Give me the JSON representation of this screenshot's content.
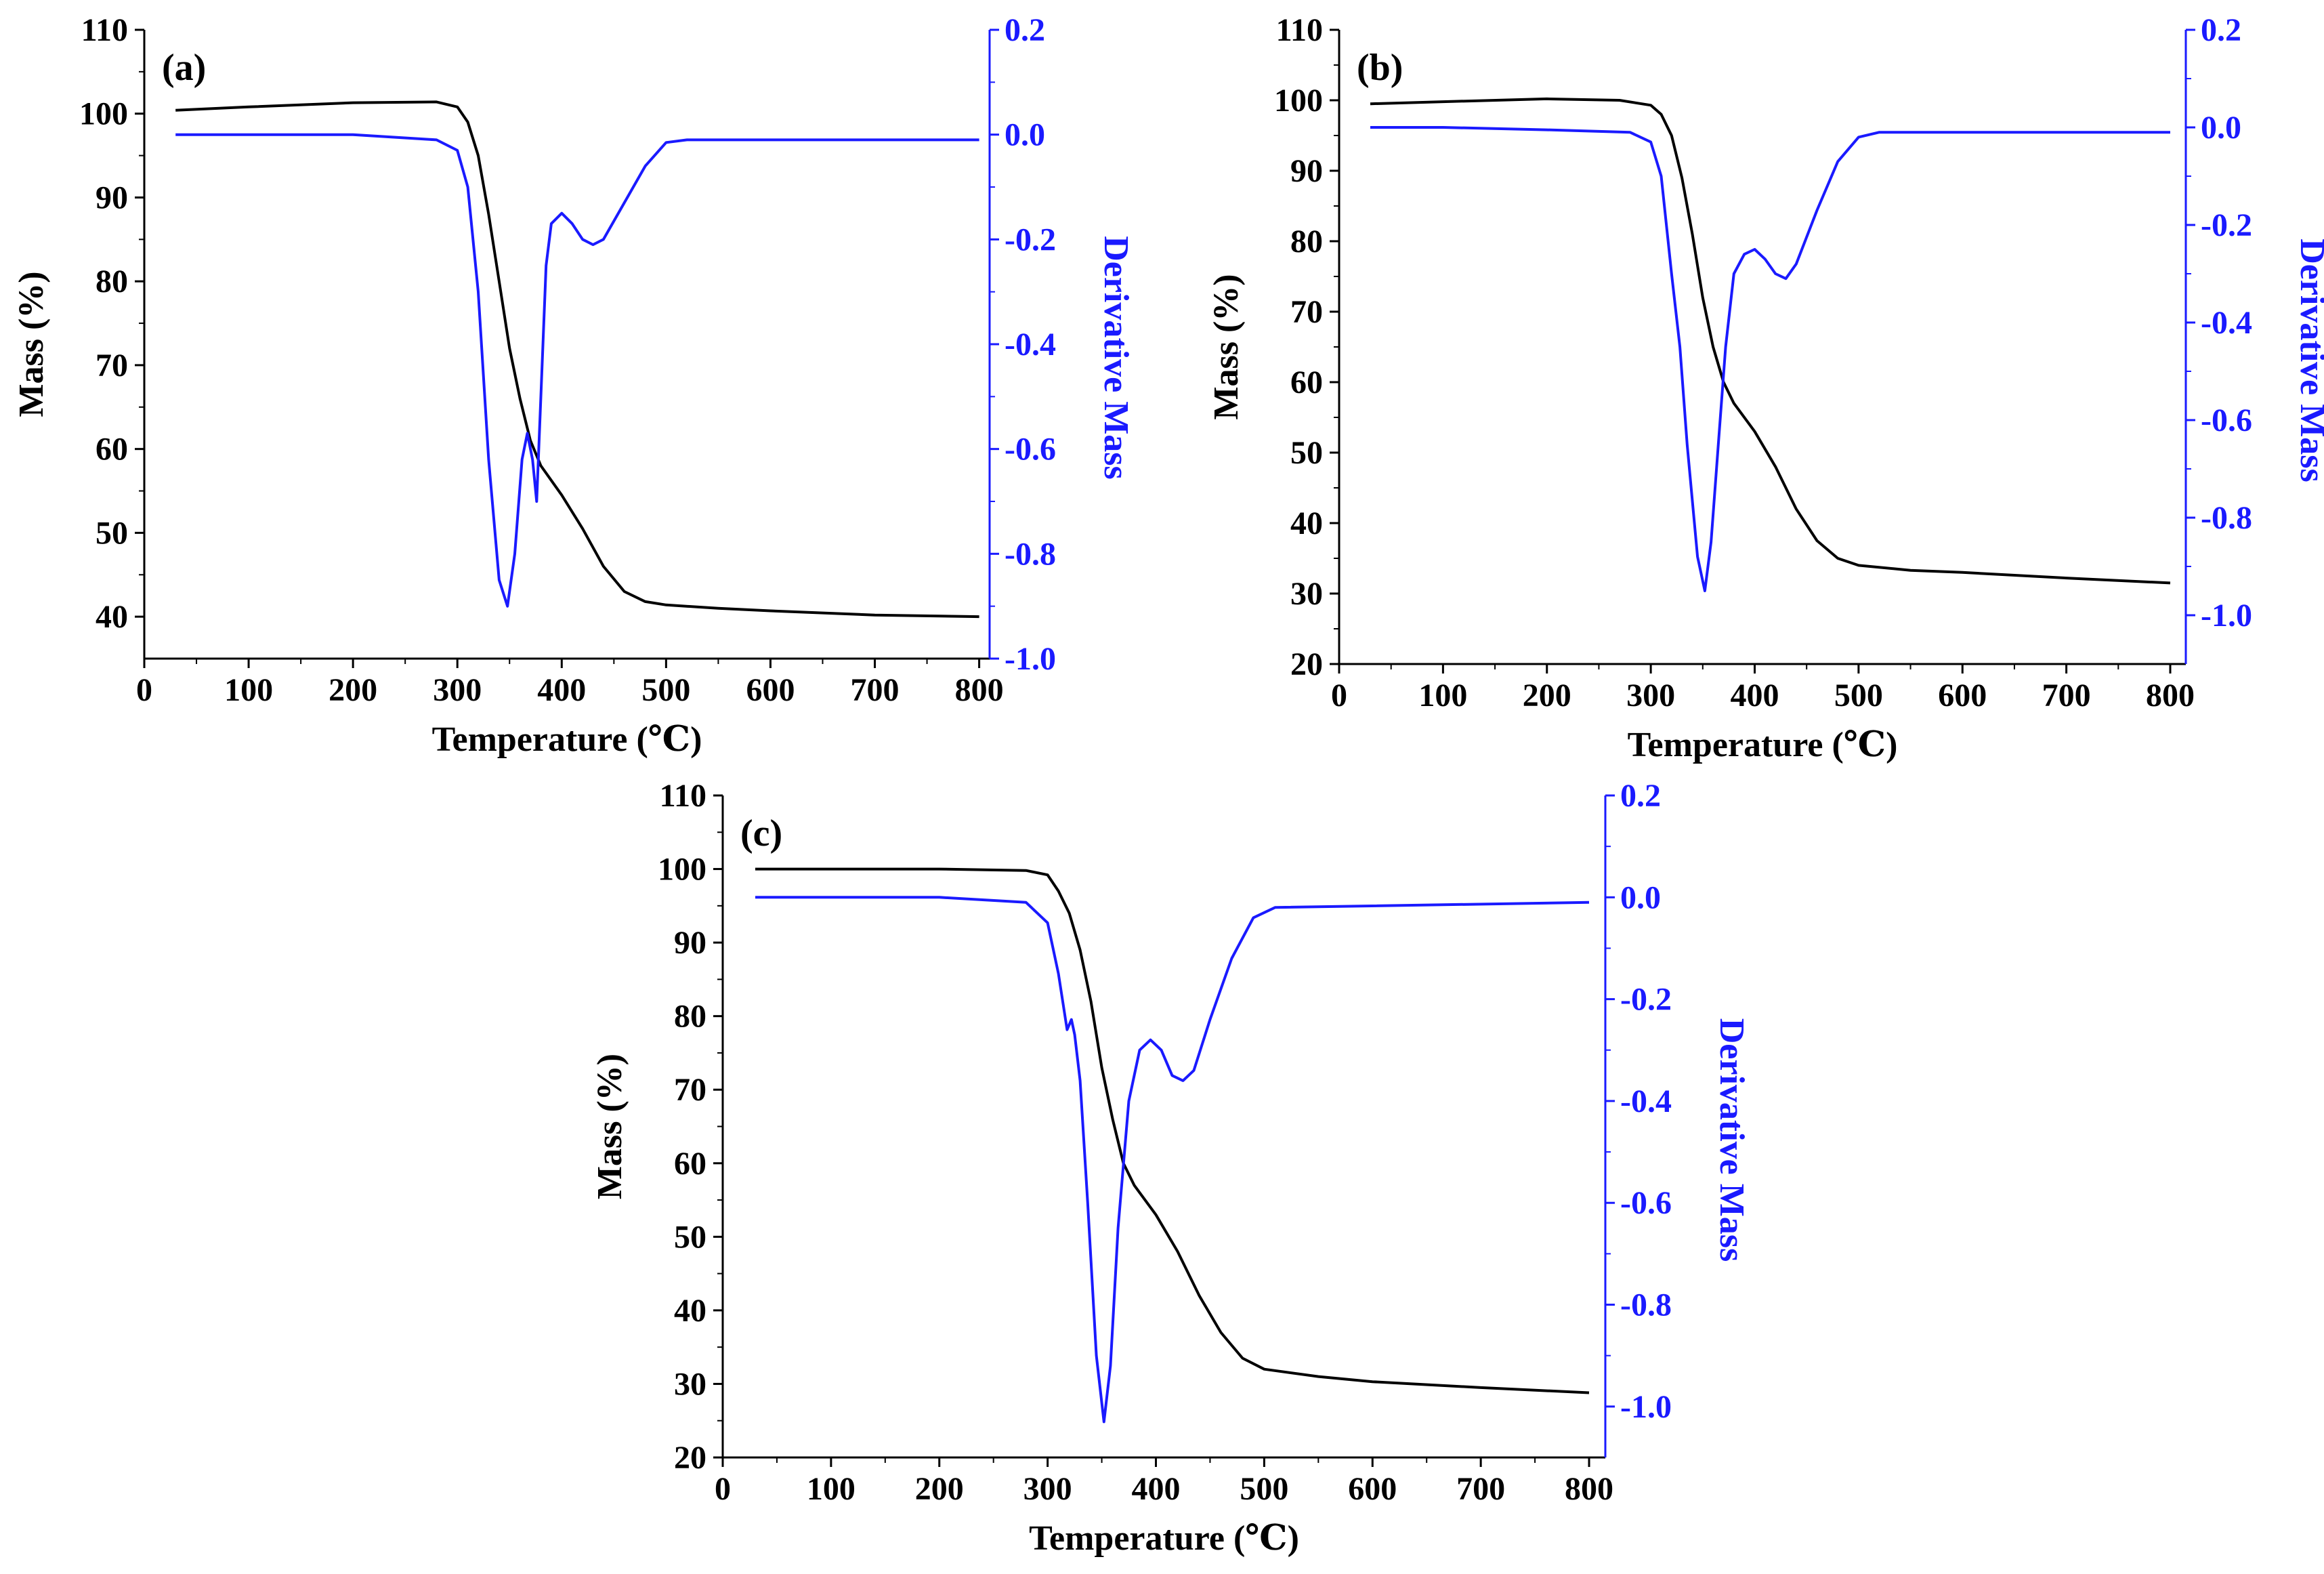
{
  "figure": {
    "panels": [
      "(a)",
      "(b)",
      "(c)"
    ]
  },
  "colors": {
    "mass": "#000000",
    "derivative": "#1a1aff",
    "axis": "#000000"
  },
  "chart_data": [
    {
      "id": "a",
      "type": "line",
      "panel_label": "(a)",
      "xlabel": "Temperature (℃)",
      "ylabel_left": "Mass (%)",
      "ylabel_right": "Derivative Mass",
      "xlim": [
        0,
        810
      ],
      "ylim_left": [
        35,
        110
      ],
      "ylim_right": [
        -1.0,
        0.2
      ],
      "x_ticks": [
        0,
        100,
        200,
        300,
        400,
        500,
        600,
        700,
        800
      ],
      "y_left_ticks": [
        40,
        50,
        60,
        70,
        80,
        90,
        100,
        110
      ],
      "y_right_ticks": [
        0.2,
        0.0,
        -0.2,
        -0.4,
        -0.6,
        -0.8,
        -1.0
      ],
      "y_right_tick_labels": [
        "0.2",
        "0.0",
        "-0.2",
        "-0.4",
        "-0.6",
        "-0.8",
        "-1.0"
      ],
      "series": [
        {
          "name": "Mass (%)",
          "axis": "left",
          "points": [
            [
              30,
              100.4
            ],
            [
              100,
              100.8
            ],
            [
              200,
              101.3
            ],
            [
              280,
              101.4
            ],
            [
              300,
              100.8
            ],
            [
              310,
              99
            ],
            [
              320,
              95
            ],
            [
              330,
              88
            ],
            [
              340,
              80
            ],
            [
              350,
              72
            ],
            [
              360,
              66
            ],
            [
              370,
              61
            ],
            [
              380,
              58
            ],
            [
              400,
              54.5
            ],
            [
              420,
              50.5
            ],
            [
              440,
              46
            ],
            [
              460,
              43
            ],
            [
              480,
              41.8
            ],
            [
              500,
              41.4
            ],
            [
              550,
              41
            ],
            [
              600,
              40.7
            ],
            [
              700,
              40.2
            ],
            [
              800,
              40
            ]
          ]
        },
        {
          "name": "Derivative Mass",
          "axis": "right",
          "points": [
            [
              30,
              0.0
            ],
            [
              100,
              0.0
            ],
            [
              200,
              0.0
            ],
            [
              280,
              -0.01
            ],
            [
              300,
              -0.03
            ],
            [
              310,
              -0.1
            ],
            [
              320,
              -0.3
            ],
            [
              330,
              -0.62
            ],
            [
              340,
              -0.85
            ],
            [
              348,
              -0.9
            ],
            [
              355,
              -0.8
            ],
            [
              362,
              -0.62
            ],
            [
              367,
              -0.57
            ],
            [
              372,
              -0.62
            ],
            [
              376,
              -0.7
            ],
            [
              380,
              -0.5
            ],
            [
              385,
              -0.25
            ],
            [
              390,
              -0.17
            ],
            [
              400,
              -0.15
            ],
            [
              410,
              -0.17
            ],
            [
              420,
              -0.2
            ],
            [
              430,
              -0.21
            ],
            [
              440,
              -0.2
            ],
            [
              460,
              -0.13
            ],
            [
              480,
              -0.06
            ],
            [
              500,
              -0.015
            ],
            [
              520,
              -0.01
            ],
            [
              800,
              -0.01
            ]
          ]
        }
      ]
    },
    {
      "id": "b",
      "type": "line",
      "panel_label": "(b)",
      "xlabel": "Temperature (℃)",
      "ylabel_left": "Mass (%)",
      "ylabel_right": "Derivative Mass",
      "xlim": [
        0,
        815
      ],
      "ylim_left": [
        20,
        110
      ],
      "ylim_right": [
        -1.1,
        0.2
      ],
      "x_ticks": [
        0,
        100,
        200,
        300,
        400,
        500,
        600,
        700,
        800
      ],
      "y_left_ticks": [
        20,
        30,
        40,
        50,
        60,
        70,
        80,
        90,
        100,
        110
      ],
      "y_right_ticks": [
        0.2,
        0.0,
        -0.2,
        -0.4,
        -0.6,
        -0.8,
        -1.0
      ],
      "y_right_tick_labels": [
        "0.2",
        "0.0",
        "-0.2",
        "-0.4",
        "-0.6",
        "-0.8",
        "-1.0"
      ],
      "series": [
        {
          "name": "Mass (%)",
          "axis": "left",
          "points": [
            [
              30,
              99.5
            ],
            [
              100,
              99.8
            ],
            [
              200,
              100.2
            ],
            [
              270,
              100
            ],
            [
              300,
              99.3
            ],
            [
              310,
              98
            ],
            [
              320,
              95
            ],
            [
              330,
              89
            ],
            [
              340,
              81
            ],
            [
              350,
              72
            ],
            [
              360,
              65
            ],
            [
              370,
              60
            ],
            [
              380,
              57
            ],
            [
              400,
              53
            ],
            [
              420,
              48
            ],
            [
              440,
              42
            ],
            [
              460,
              37.5
            ],
            [
              480,
              35
            ],
            [
              500,
              34
            ],
            [
              550,
              33.3
            ],
            [
              600,
              33
            ],
            [
              700,
              32.2
            ],
            [
              800,
              31.5
            ]
          ]
        },
        {
          "name": "Derivative Mass",
          "axis": "right",
          "points": [
            [
              30,
              0.0
            ],
            [
              100,
              0.0
            ],
            [
              200,
              -0.005
            ],
            [
              280,
              -0.01
            ],
            [
              300,
              -0.03
            ],
            [
              310,
              -0.1
            ],
            [
              320,
              -0.3
            ],
            [
              328,
              -0.45
            ],
            [
              335,
              -0.65
            ],
            [
              345,
              -0.88
            ],
            [
              352,
              -0.95
            ],
            [
              358,
              -0.85
            ],
            [
              365,
              -0.65
            ],
            [
              372,
              -0.45
            ],
            [
              380,
              -0.3
            ],
            [
              390,
              -0.26
            ],
            [
              400,
              -0.25
            ],
            [
              410,
              -0.27
            ],
            [
              420,
              -0.3
            ],
            [
              430,
              -0.31
            ],
            [
              440,
              -0.28
            ],
            [
              460,
              -0.17
            ],
            [
              480,
              -0.07
            ],
            [
              500,
              -0.02
            ],
            [
              520,
              -0.01
            ],
            [
              800,
              -0.01
            ]
          ]
        }
      ]
    },
    {
      "id": "c",
      "type": "line",
      "panel_label": "(c)",
      "xlabel": "Temperature (℃)",
      "ylabel_left": "Mass (%)",
      "ylabel_right": "Derivative Mass",
      "xlim": [
        0,
        815
      ],
      "ylim_left": [
        20,
        110
      ],
      "ylim_right": [
        -1.1,
        0.2
      ],
      "x_ticks": [
        0,
        100,
        200,
        300,
        400,
        500,
        600,
        700,
        800
      ],
      "y_left_ticks": [
        20,
        30,
        40,
        50,
        60,
        70,
        80,
        90,
        100,
        110
      ],
      "y_right_ticks": [
        0.2,
        0.0,
        -0.2,
        -0.4,
        -0.6,
        -0.8,
        -1.0
      ],
      "y_right_tick_labels": [
        "0.2",
        "0.0",
        "-0.2",
        "-0.4",
        "-0.6",
        "-0.8",
        "-1.0"
      ],
      "series": [
        {
          "name": "Mass (%)",
          "axis": "left",
          "points": [
            [
              30,
              100
            ],
            [
              100,
              100
            ],
            [
              200,
              100
            ],
            [
              280,
              99.8
            ],
            [
              300,
              99.2
            ],
            [
              310,
              97
            ],
            [
              320,
              94
            ],
            [
              330,
              89
            ],
            [
              340,
              82
            ],
            [
              350,
              73
            ],
            [
              360,
              66
            ],
            [
              370,
              60
            ],
            [
              380,
              57
            ],
            [
              400,
              53
            ],
            [
              420,
              48
            ],
            [
              440,
              42
            ],
            [
              460,
              37
            ],
            [
              480,
              33.5
            ],
            [
              500,
              32
            ],
            [
              550,
              31
            ],
            [
              600,
              30.3
            ],
            [
              700,
              29.5
            ],
            [
              800,
              28.8
            ]
          ]
        },
        {
          "name": "Derivative Mass",
          "axis": "right",
          "points": [
            [
              30,
              0.0
            ],
            [
              100,
              0.0
            ],
            [
              200,
              0.0
            ],
            [
              280,
              -0.01
            ],
            [
              300,
              -0.05
            ],
            [
              310,
              -0.15
            ],
            [
              318,
              -0.26
            ],
            [
              322,
              -0.24
            ],
            [
              325,
              -0.27
            ],
            [
              330,
              -0.36
            ],
            [
              337,
              -0.6
            ],
            [
              345,
              -0.9
            ],
            [
              352,
              -1.03
            ],
            [
              358,
              -0.92
            ],
            [
              365,
              -0.65
            ],
            [
              375,
              -0.4
            ],
            [
              385,
              -0.3
            ],
            [
              395,
              -0.28
            ],
            [
              405,
              -0.3
            ],
            [
              415,
              -0.35
            ],
            [
              425,
              -0.36
            ],
            [
              435,
              -0.34
            ],
            [
              450,
              -0.24
            ],
            [
              470,
              -0.12
            ],
            [
              490,
              -0.04
            ],
            [
              510,
              -0.02
            ],
            [
              800,
              -0.01
            ]
          ]
        }
      ]
    }
  ]
}
